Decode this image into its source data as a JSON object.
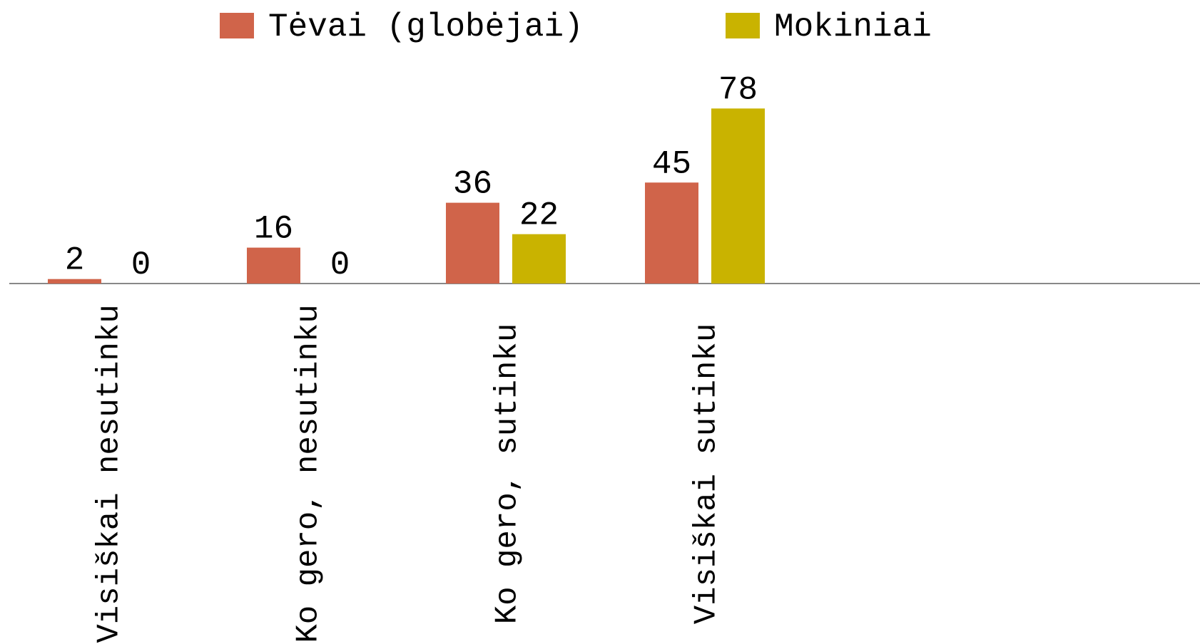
{
  "chart_data": {
    "type": "bar",
    "categories": [
      "Visiškai nesutinku",
      "Ko gero, nesutinku",
      "Ko gero, sutinku",
      "Visiškai sutinku"
    ],
    "series": [
      {
        "name": "Tėvai (globėjai)",
        "color": "#d0644a",
        "values": [
          2,
          16,
          36,
          45
        ]
      },
      {
        "name": "Mokiniai",
        "color": "#c9b300",
        "values": [
          0,
          0,
          22,
          78
        ]
      }
    ],
    "legend": "top"
  }
}
